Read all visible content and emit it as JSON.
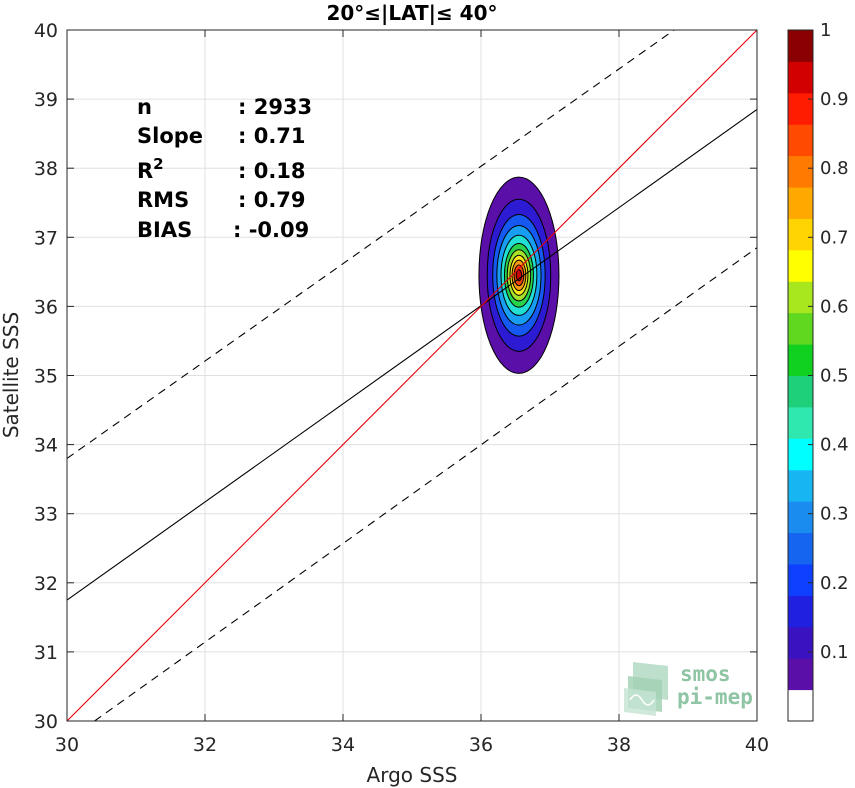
{
  "chart_data": {
    "type": "scatter",
    "title": "20°≤|LAT|≤ 40°",
    "xlabel": "Argo SSS",
    "ylabel": "Satellite SSS",
    "xlim": [
      30,
      40
    ],
    "ylim": [
      30,
      40
    ],
    "xticks": [
      "30",
      "32",
      "34",
      "36",
      "38",
      "40"
    ],
    "yticks": [
      "30",
      "31",
      "32",
      "33",
      "34",
      "35",
      "36",
      "37",
      "38",
      "39",
      "40"
    ],
    "grid": true,
    "stats": [
      {
        "key": "n",
        "value": ": 2933"
      },
      {
        "key": "Slope",
        "value": ": 0.71"
      },
      {
        "key": "R",
        "sup": "2",
        "value": ": 0.18"
      },
      {
        "key": "RMS",
        "value": ": 0.79"
      },
      {
        "key": "BIAS",
        "value": ": -0.09"
      }
    ],
    "lines": {
      "identity": {
        "x": [
          30,
          40
        ],
        "y": [
          30,
          40
        ],
        "color": "#e8000b"
      },
      "regression": {
        "x": [
          30,
          40
        ],
        "y": [
          31.75,
          38.85
        ],
        "color": "#000000"
      },
      "envelope_upper": {
        "x": [
          30,
          38.8
        ],
        "y": [
          33.8,
          40
        ],
        "color": "#000000",
        "style": "dashed"
      },
      "envelope_lower": {
        "x": [
          30.4,
          40
        ],
        "y": [
          30,
          36.85
        ],
        "color": "#000000",
        "style": "dashed"
      }
    },
    "density": {
      "center": [
        36.55,
        36.45
      ],
      "levels": [
        {
          "level": 0.05,
          "hw": 0.58,
          "hh": 1.42,
          "color": "#5a0fa8"
        },
        {
          "level": 0.1,
          "hw": 0.46,
          "hh": 1.1,
          "color": "#2c1bd2"
        },
        {
          "level": 0.2,
          "hw": 0.38,
          "hh": 0.88,
          "color": "#1659f0"
        },
        {
          "level": 0.3,
          "hw": 0.32,
          "hh": 0.72,
          "color": "#179ef2"
        },
        {
          "level": 0.4,
          "hw": 0.26,
          "hh": 0.58,
          "color": "#21dfd2"
        },
        {
          "level": 0.5,
          "hw": 0.21,
          "hh": 0.46,
          "color": "#28d24a"
        },
        {
          "level": 0.6,
          "hw": 0.17,
          "hh": 0.37,
          "color": "#a6e22a"
        },
        {
          "level": 0.7,
          "hw": 0.13,
          "hh": 0.29,
          "color": "#fbe61a"
        },
        {
          "level": 0.8,
          "hw": 0.1,
          "hh": 0.22,
          "color": "#f99a10"
        },
        {
          "level": 0.9,
          "hw": 0.07,
          "hh": 0.15,
          "color": "#f0460a"
        },
        {
          "level": 1.0,
          "hw": 0.04,
          "hh": 0.08,
          "color": "#c40000"
        }
      ]
    },
    "colorbar": {
      "ticks": [
        "0.1",
        "0.2",
        "0.3",
        "0.4",
        "0.5",
        "0.6",
        "0.7",
        "0.8",
        "0.9",
        "1"
      ],
      "tick_values": [
        0.1,
        0.2,
        0.3,
        0.4,
        0.5,
        0.6,
        0.7,
        0.8,
        0.9,
        1.0
      ],
      "range": [
        0,
        1
      ],
      "colors": [
        "#ffffff",
        "#5a0fa8",
        "#3a12c0",
        "#2020e0",
        "#1040ff",
        "#1565f0",
        "#1a8cf0",
        "#17b5f2",
        "#00ffff",
        "#2ee8b0",
        "#1ed07a",
        "#10d020",
        "#60d820",
        "#a8e61e",
        "#ffff00",
        "#ffd400",
        "#ffa800",
        "#ff7a00",
        "#ff4a00",
        "#ff1c00",
        "#d20000",
        "#8b0000"
      ]
    }
  },
  "logo": {
    "line1": "smos",
    "line2": "pi-mep"
  }
}
